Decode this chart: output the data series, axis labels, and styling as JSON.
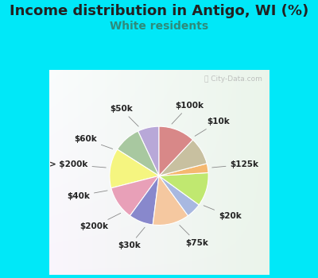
{
  "title": "Income distribution in Antigo, WI (%)",
  "subtitle": "White residents",
  "title_color": "#222222",
  "subtitle_color": "#2e8b7a",
  "background_color": "#00e8f8",
  "chart_bg_color": "#e8f5f0",
  "labels": [
    "$100k",
    "$10k",
    "$125k",
    "$20k",
    "$75k",
    "$30k",
    "$200k",
    "$40k",
    "> $200k",
    "$60k",
    "$50k"
  ],
  "values": [
    7,
    9,
    13,
    11,
    8,
    12,
    5,
    11,
    3,
    9,
    12
  ],
  "colors": [
    "#b8a8d8",
    "#a8c8a0",
    "#f5f580",
    "#e8a0b8",
    "#8888cc",
    "#f5c8a0",
    "#a8b8e0",
    "#c0e870",
    "#f5b870",
    "#c8c0a0",
    "#d88888"
  ],
  "startangle": 90,
  "wedge_edge_color": "white",
  "wedge_linewidth": 0.8,
  "label_fontsize": 7.5,
  "title_fontsize": 13,
  "subtitle_fontsize": 10
}
